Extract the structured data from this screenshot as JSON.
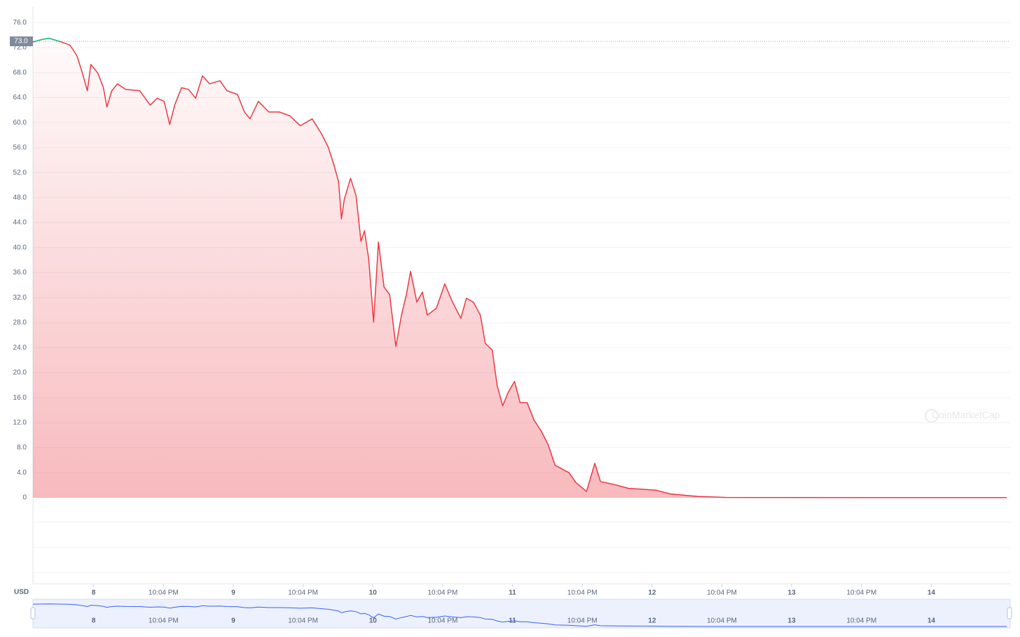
{
  "chart_data": {
    "type": "line",
    "x": [
      7.565,
      7.63,
      7.68,
      7.755,
      7.83,
      7.88,
      7.92,
      7.955,
      7.98,
      8.03,
      8.07,
      8.095,
      8.13,
      8.17,
      8.23,
      8.33,
      8.405,
      8.455,
      8.505,
      8.545,
      8.58,
      8.63,
      8.68,
      8.73,
      8.78,
      8.83,
      8.905,
      8.955,
      9.03,
      9.08,
      9.12,
      9.18,
      9.255,
      9.33,
      9.405,
      9.48,
      9.565,
      9.63,
      9.68,
      9.72,
      9.755,
      9.775,
      9.795,
      9.84,
      9.88,
      9.915,
      9.94,
      9.97,
      10.005,
      10.04,
      10.08,
      10.12,
      10.165,
      10.205,
      10.24,
      10.27,
      10.315,
      10.355,
      10.39,
      10.455,
      10.515,
      10.57,
      10.63,
      10.67,
      10.72,
      10.77,
      10.805,
      10.855,
      10.89,
      10.93,
      10.97,
      11.015,
      11.055,
      11.105,
      11.155,
      11.205,
      11.255,
      11.305,
      11.355,
      11.405,
      11.455,
      11.53,
      11.59,
      11.63,
      11.73,
      11.83,
      12.03,
      12.13,
      12.33,
      12.53,
      13.08,
      14.54
    ],
    "series": [
      {
        "color": "#ea3943",
        "up_color": "#16c784",
        "values": [
          72.9,
          73.3,
          73.5,
          73.0,
          72.4,
          70.7,
          67.9,
          65.1,
          69.3,
          67.9,
          65.6,
          62.5,
          65.1,
          66.2,
          65.3,
          65.1,
          62.8,
          63.9,
          63.4,
          59.7,
          62.8,
          65.6,
          65.3,
          63.9,
          67.5,
          66.2,
          66.7,
          65.1,
          64.5,
          61.7,
          60.6,
          63.4,
          61.7,
          61.7,
          61.1,
          59.5,
          60.6,
          58.3,
          56.1,
          53.3,
          50.5,
          44.6,
          47.7,
          51.1,
          48.3,
          41.0,
          42.7,
          38.2,
          28.1,
          40.9,
          33.7,
          32.5,
          24.2,
          29.2,
          32.5,
          36.2,
          31.3,
          32.9,
          29.2,
          30.3,
          34.2,
          31.3,
          28.7,
          31.9,
          31.3,
          29.2,
          24.7,
          23.6,
          18.0,
          14.7,
          16.9,
          18.6,
          15.2,
          15.2,
          12.4,
          10.7,
          8.5,
          5.2,
          4.6,
          4.0,
          2.4,
          1.0,
          5.5,
          2.6,
          2.1,
          1.5,
          1.2,
          0.6,
          0.2,
          0.05,
          0.02,
          0.01
        ]
      }
    ],
    "xlim": [
      7.565,
      14.565
    ],
    "xticks": [
      8,
      {
        "value": 8.5,
        "label": "10:04 PM"
      },
      9,
      {
        "value": 9.5,
        "label": "10:04 PM"
      },
      10,
      {
        "value": 10.5,
        "label": "10:04 PM"
      },
      11,
      {
        "value": 11.5,
        "label": "10:04 PM"
      },
      12,
      {
        "value": 12.5,
        "label": "10:04 PM"
      },
      13,
      {
        "value": 13.5,
        "label": "10:04 PM"
      },
      14
    ],
    "ylim": [
      0,
      77.6
    ],
    "yticks": [
      0,
      {
        "value": 4,
        "label": "4.0"
      },
      {
        "value": 8,
        "label": "8.0"
      },
      {
        "value": 12,
        "label": "12.0"
      },
      {
        "value": 16,
        "label": "16.0"
      },
      {
        "value": 20,
        "label": "20.0"
      },
      {
        "value": 24,
        "label": "24.0"
      },
      {
        "value": 28,
        "label": "28.0"
      },
      {
        "value": 32,
        "label": "32.0"
      },
      {
        "value": 36,
        "label": "36.0"
      },
      {
        "value": 40,
        "label": "40.0"
      },
      {
        "value": 44,
        "label": "44.0"
      },
      {
        "value": 48,
        "label": "48.0"
      },
      {
        "value": 52,
        "label": "52.0"
      },
      {
        "value": 56,
        "label": "56.0"
      },
      {
        "value": 60,
        "label": "60.0"
      },
      {
        "value": 64,
        "label": "64.0"
      },
      {
        "value": 68,
        "label": "68.0"
      },
      {
        "value": 72,
        "label": "72.0"
      },
      {
        "value": 76,
        "label": "76.0"
      }
    ],
    "reference_line": {
      "value": 73,
      "label": "73.0"
    },
    "currency_label": "USD",
    "watermark": "CoinMarketCap",
    "grid": true
  }
}
